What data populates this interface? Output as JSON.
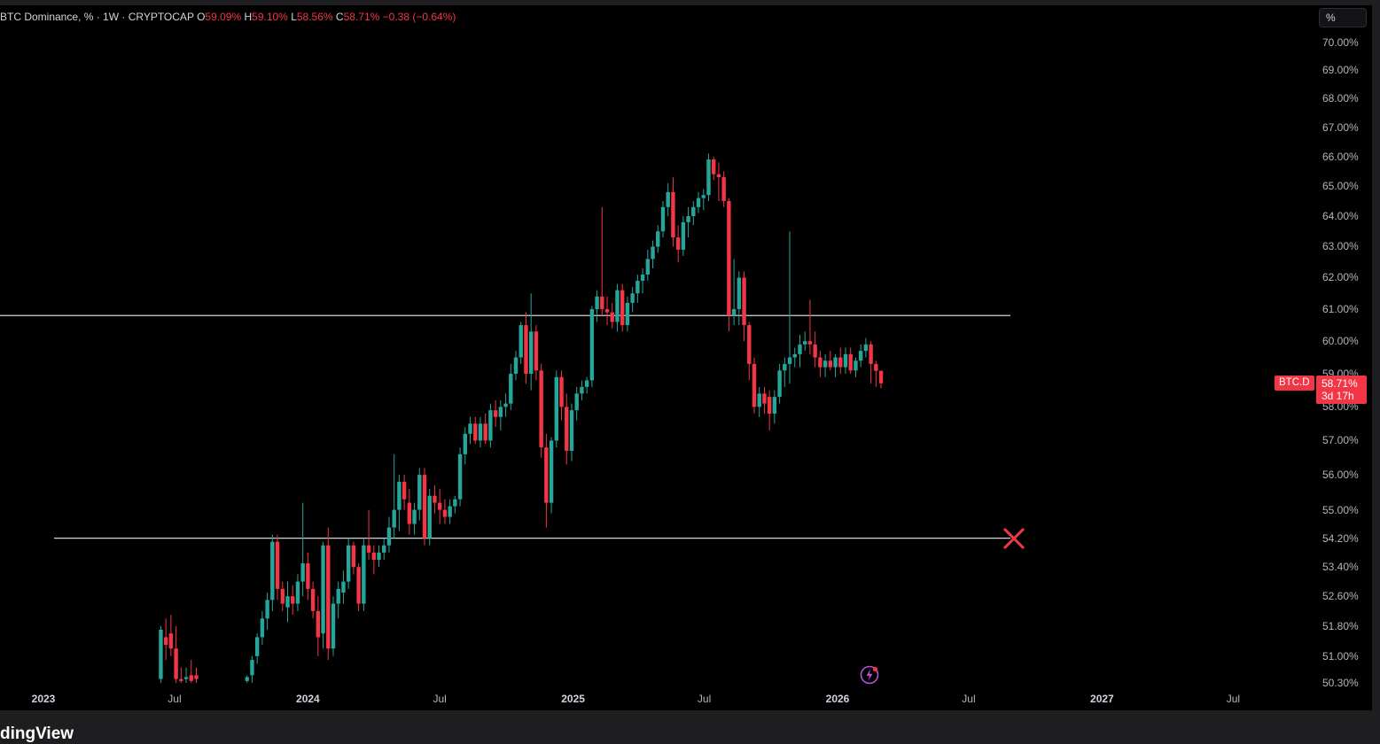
{
  "header": {
    "title": "BTC Dominance, % · 1W · CRYPTOCAP",
    "open_key": "O",
    "open": "59.09%",
    "high_key": "H",
    "high": "59.10%",
    "low_key": "L",
    "low": "58.56%",
    "close_key": "C",
    "close": "58.71%",
    "change": "−0.38 (−0.64%)"
  },
  "scale_button": "%",
  "last_price": {
    "symbol": "BTC.D",
    "value": "58.71%",
    "countdown": "3d 17h",
    "color": "#f23645"
  },
  "footer": {
    "logo_text": "dingView"
  },
  "icons": {
    "target_marker": "x-mark-icon",
    "indicator": "lightning-icon"
  },
  "colors": {
    "up": "#26a69a",
    "down": "#f23645",
    "background": "#000000",
    "level_line": "#d1d4dc",
    "marker": "#f23645",
    "indicator": "#b452d8"
  },
  "chart_data": {
    "type": "candlestick",
    "title": "BTC Dominance, % · 1W · CRYPTOCAP",
    "xlabel": "",
    "ylabel": "",
    "ylim": [
      50.3,
      70.0
    ],
    "y_scale": "log",
    "y_tick_labels": [
      "70.00%",
      "69.00%",
      "68.00%",
      "67.00%",
      "66.00%",
      "65.00%",
      "64.00%",
      "63.00%",
      "62.00%",
      "61.00%",
      "60.00%",
      "59.00%",
      "58.00%",
      "57.00%",
      "56.00%",
      "55.00%",
      "54.20%",
      "53.40%",
      "52.60%",
      "51.80%",
      "51.00%",
      "50.30%"
    ],
    "y_tick_values": [
      70,
      69,
      68,
      67,
      66,
      65,
      64,
      63,
      62,
      61,
      60,
      59,
      58,
      57,
      56,
      55,
      54.2,
      53.4,
      52.6,
      51.8,
      51,
      50.3
    ],
    "x_tick_labels": [
      "2023",
      "Jul",
      "2024",
      "Jul",
      "2025",
      "Jul",
      "2026",
      "Jul",
      "2027",
      "Jul"
    ],
    "x_tick_dates": [
      "2023-01-01",
      "2023-07-01",
      "2024-01-01",
      "2024-07-01",
      "2025-01-01",
      "2025-07-01",
      "2026-01-01",
      "2026-07-01",
      "2027-01-01",
      "2027-07-01"
    ],
    "horizontal_levels": [
      60.8,
      54.2
    ],
    "marker": {
      "type": "x",
      "value": 54.2,
      "date": "2026-09-01"
    },
    "candles": [
      {
        "date": "2023-06-12",
        "o": 50.4,
        "h": 51.8,
        "l": 50.3,
        "c": 51.7
      },
      {
        "date": "2023-06-19",
        "o": 51.5,
        "h": 52.0,
        "l": 50.9,
        "c": 51.3
      },
      {
        "date": "2023-06-26",
        "o": 51.6,
        "h": 52.1,
        "l": 51.0,
        "c": 51.2
      },
      {
        "date": "2023-07-03",
        "o": 51.2,
        "h": 51.8,
        "l": 50.3,
        "c": 50.4
      },
      {
        "date": "2023-07-10",
        "o": 50.4,
        "h": 50.7,
        "l": 50.3,
        "c": 50.35
      },
      {
        "date": "2023-07-17",
        "o": 50.4,
        "h": 50.7,
        "l": 50.3,
        "c": 50.45
      },
      {
        "date": "2023-07-24",
        "o": 50.5,
        "h": 50.9,
        "l": 50.3,
        "c": 50.35
      },
      {
        "date": "2023-07-31",
        "o": 50.5,
        "h": 50.7,
        "l": 50.3,
        "c": 50.4
      },
      {
        "date": "2023-10-09",
        "o": 50.35,
        "h": 50.5,
        "l": 50.3,
        "c": 50.45
      },
      {
        "date": "2023-10-16",
        "o": 50.5,
        "h": 51.0,
        "l": 50.3,
        "c": 50.9
      },
      {
        "date": "2023-10-23",
        "o": 51.0,
        "h": 51.6,
        "l": 50.8,
        "c": 51.5
      },
      {
        "date": "2023-10-30",
        "o": 51.5,
        "h": 52.2,
        "l": 51.3,
        "c": 52.0
      },
      {
        "date": "2023-11-06",
        "o": 52.0,
        "h": 52.7,
        "l": 51.7,
        "c": 52.5
      },
      {
        "date": "2023-11-13",
        "o": 52.5,
        "h": 54.3,
        "l": 52.2,
        "c": 54.1
      },
      {
        "date": "2023-11-20",
        "o": 54.1,
        "h": 54.3,
        "l": 52.5,
        "c": 52.8
      },
      {
        "date": "2023-11-27",
        "o": 52.8,
        "h": 53.0,
        "l": 52.2,
        "c": 52.4
      },
      {
        "date": "2023-12-04",
        "o": 52.3,
        "h": 53.0,
        "l": 51.9,
        "c": 52.6
      },
      {
        "date": "2023-12-11",
        "o": 52.6,
        "h": 52.9,
        "l": 52.1,
        "c": 52.4
      },
      {
        "date": "2023-12-18",
        "o": 52.4,
        "h": 53.2,
        "l": 52.2,
        "c": 53.0
      },
      {
        "date": "2023-12-25",
        "o": 53.0,
        "h": 55.2,
        "l": 52.6,
        "c": 53.5
      },
      {
        "date": "2024-01-01",
        "o": 53.5,
        "h": 53.8,
        "l": 52.5,
        "c": 52.8
      },
      {
        "date": "2024-01-08",
        "o": 52.8,
        "h": 53.0,
        "l": 52.0,
        "c": 52.2
      },
      {
        "date": "2024-01-15",
        "o": 52.2,
        "h": 52.6,
        "l": 51.0,
        "c": 51.5
      },
      {
        "date": "2024-01-22",
        "o": 51.6,
        "h": 54.1,
        "l": 51.2,
        "c": 54.0
      },
      {
        "date": "2024-01-29",
        "o": 54.0,
        "h": 54.5,
        "l": 50.9,
        "c": 51.2
      },
      {
        "date": "2024-02-05",
        "o": 51.2,
        "h": 52.6,
        "l": 51.0,
        "c": 52.4
      },
      {
        "date": "2024-02-12",
        "o": 52.4,
        "h": 53.0,
        "l": 52.0,
        "c": 52.8
      },
      {
        "date": "2024-02-19",
        "o": 52.7,
        "h": 53.3,
        "l": 52.4,
        "c": 53.0
      },
      {
        "date": "2024-02-26",
        "o": 53.0,
        "h": 54.2,
        "l": 52.8,
        "c": 54.0
      },
      {
        "date": "2024-03-04",
        "o": 54.0,
        "h": 54.1,
        "l": 53.2,
        "c": 53.4
      },
      {
        "date": "2024-03-11",
        "o": 53.4,
        "h": 53.5,
        "l": 52.2,
        "c": 52.4
      },
      {
        "date": "2024-03-18",
        "o": 52.4,
        "h": 54.2,
        "l": 52.2,
        "c": 54.0
      },
      {
        "date": "2024-03-25",
        "o": 54.0,
        "h": 55.0,
        "l": 53.6,
        "c": 53.8
      },
      {
        "date": "2024-04-01",
        "o": 53.8,
        "h": 54.0,
        "l": 53.2,
        "c": 53.6
      },
      {
        "date": "2024-04-08",
        "o": 53.6,
        "h": 54.0,
        "l": 53.4,
        "c": 53.8
      },
      {
        "date": "2024-04-15",
        "o": 53.8,
        "h": 54.2,
        "l": 53.6,
        "c": 54.0
      },
      {
        "date": "2024-04-22",
        "o": 54.0,
        "h": 54.8,
        "l": 53.8,
        "c": 54.5
      },
      {
        "date": "2024-04-29",
        "o": 54.5,
        "h": 56.6,
        "l": 54.2,
        "c": 55.0
      },
      {
        "date": "2024-05-06",
        "o": 55.0,
        "h": 56.0,
        "l": 54.4,
        "c": 55.8
      },
      {
        "date": "2024-05-13",
        "o": 55.8,
        "h": 56.0,
        "l": 55.0,
        "c": 55.3
      },
      {
        "date": "2024-05-20",
        "o": 55.2,
        "h": 55.6,
        "l": 54.3,
        "c": 54.6
      },
      {
        "date": "2024-05-27",
        "o": 54.6,
        "h": 55.2,
        "l": 54.3,
        "c": 55.0
      },
      {
        "date": "2024-06-03",
        "o": 55.0,
        "h": 56.2,
        "l": 54.7,
        "c": 56.0
      },
      {
        "date": "2024-06-10",
        "o": 56.0,
        "h": 56.2,
        "l": 54.0,
        "c": 54.2
      },
      {
        "date": "2024-06-17",
        "o": 54.2,
        "h": 55.6,
        "l": 54.0,
        "c": 55.4
      },
      {
        "date": "2024-06-24",
        "o": 55.4,
        "h": 55.7,
        "l": 54.9,
        "c": 55.2
      },
      {
        "date": "2024-07-01",
        "o": 55.2,
        "h": 55.6,
        "l": 54.6,
        "c": 55.0
      },
      {
        "date": "2024-07-08",
        "o": 55.0,
        "h": 55.3,
        "l": 54.6,
        "c": 54.8
      },
      {
        "date": "2024-07-15",
        "o": 54.8,
        "h": 55.3,
        "l": 54.6,
        "c": 55.1
      },
      {
        "date": "2024-07-22",
        "o": 55.1,
        "h": 55.4,
        "l": 54.9,
        "c": 55.3
      },
      {
        "date": "2024-07-29",
        "o": 55.3,
        "h": 56.8,
        "l": 55.1,
        "c": 56.6
      },
      {
        "date": "2024-08-05",
        "o": 56.6,
        "h": 57.4,
        "l": 56.3,
        "c": 57.2
      },
      {
        "date": "2024-08-12",
        "o": 57.2,
        "h": 57.7,
        "l": 56.9,
        "c": 57.5
      },
      {
        "date": "2024-08-19",
        "o": 57.5,
        "h": 57.7,
        "l": 56.9,
        "c": 57.0
      },
      {
        "date": "2024-08-26",
        "o": 57.0,
        "h": 57.7,
        "l": 56.8,
        "c": 57.5
      },
      {
        "date": "2024-09-02",
        "o": 57.5,
        "h": 57.8,
        "l": 56.9,
        "c": 57.0
      },
      {
        "date": "2024-09-09",
        "o": 57.0,
        "h": 58.1,
        "l": 56.8,
        "c": 57.9
      },
      {
        "date": "2024-09-16",
        "o": 57.9,
        "h": 58.2,
        "l": 57.4,
        "c": 57.7
      },
      {
        "date": "2024-09-23",
        "o": 57.7,
        "h": 58.2,
        "l": 57.3,
        "c": 58.0
      },
      {
        "date": "2024-09-30",
        "o": 58.0,
        "h": 58.4,
        "l": 57.7,
        "c": 58.1
      },
      {
        "date": "2024-10-07",
        "o": 58.1,
        "h": 59.3,
        "l": 57.9,
        "c": 59.0
      },
      {
        "date": "2024-10-14",
        "o": 59.0,
        "h": 59.7,
        "l": 58.8,
        "c": 59.5
      },
      {
        "date": "2024-10-21",
        "o": 59.5,
        "h": 60.6,
        "l": 59.3,
        "c": 60.5
      },
      {
        "date": "2024-10-28",
        "o": 60.5,
        "h": 60.9,
        "l": 58.7,
        "c": 59.0
      },
      {
        "date": "2024-11-04",
        "o": 59.0,
        "h": 61.5,
        "l": 58.5,
        "c": 60.3
      },
      {
        "date": "2024-11-11",
        "o": 60.3,
        "h": 60.5,
        "l": 58.8,
        "c": 59.1
      },
      {
        "date": "2024-11-18",
        "o": 59.1,
        "h": 59.3,
        "l": 56.5,
        "c": 56.8
      },
      {
        "date": "2024-11-25",
        "o": 56.8,
        "h": 57.2,
        "l": 54.5,
        "c": 55.2
      },
      {
        "date": "2024-12-02",
        "o": 55.2,
        "h": 57.1,
        "l": 54.9,
        "c": 57.0
      },
      {
        "date": "2024-12-09",
        "o": 57.0,
        "h": 59.1,
        "l": 56.8,
        "c": 58.9
      },
      {
        "date": "2024-12-16",
        "o": 58.9,
        "h": 59.1,
        "l": 57.6,
        "c": 58.0
      },
      {
        "date": "2024-12-23",
        "o": 58.0,
        "h": 58.4,
        "l": 56.3,
        "c": 56.7
      },
      {
        "date": "2024-12-30",
        "o": 56.7,
        "h": 58.1,
        "l": 56.4,
        "c": 57.9
      },
      {
        "date": "2025-01-06",
        "o": 57.9,
        "h": 58.6,
        "l": 57.6,
        "c": 58.4
      },
      {
        "date": "2025-01-13",
        "o": 58.4,
        "h": 58.8,
        "l": 58.2,
        "c": 58.6
      },
      {
        "date": "2025-01-20",
        "o": 58.6,
        "h": 58.9,
        "l": 58.4,
        "c": 58.8
      },
      {
        "date": "2025-01-27",
        "o": 58.8,
        "h": 61.1,
        "l": 58.6,
        "c": 61.0
      },
      {
        "date": "2025-02-03",
        "o": 61.0,
        "h": 61.6,
        "l": 60.6,
        "c": 61.4
      },
      {
        "date": "2025-02-10",
        "o": 61.4,
        "h": 64.3,
        "l": 60.8,
        "c": 61.0
      },
      {
        "date": "2025-02-17",
        "o": 61.0,
        "h": 61.4,
        "l": 60.5,
        "c": 60.9
      },
      {
        "date": "2025-02-24",
        "o": 60.9,
        "h": 61.2,
        "l": 60.4,
        "c": 60.6
      },
      {
        "date": "2025-03-03",
        "o": 60.6,
        "h": 61.8,
        "l": 60.3,
        "c": 61.6
      },
      {
        "date": "2025-03-10",
        "o": 61.6,
        "h": 61.8,
        "l": 60.3,
        "c": 60.5
      },
      {
        "date": "2025-03-17",
        "o": 60.5,
        "h": 61.4,
        "l": 60.3,
        "c": 61.2
      },
      {
        "date": "2025-03-24",
        "o": 61.2,
        "h": 61.7,
        "l": 60.9,
        "c": 61.5
      },
      {
        "date": "2025-03-31",
        "o": 61.5,
        "h": 62.1,
        "l": 61.2,
        "c": 61.9
      },
      {
        "date": "2025-04-07",
        "o": 61.9,
        "h": 62.3,
        "l": 61.5,
        "c": 62.1
      },
      {
        "date": "2025-04-14",
        "o": 62.1,
        "h": 62.9,
        "l": 61.9,
        "c": 62.6
      },
      {
        "date": "2025-04-21",
        "o": 62.6,
        "h": 63.2,
        "l": 62.3,
        "c": 63.0
      },
      {
        "date": "2025-04-28",
        "o": 63.0,
        "h": 63.7,
        "l": 62.8,
        "c": 63.5
      },
      {
        "date": "2025-05-05",
        "o": 63.5,
        "h": 64.5,
        "l": 63.3,
        "c": 64.3
      },
      {
        "date": "2025-05-12",
        "o": 64.3,
        "h": 65.1,
        "l": 64.0,
        "c": 64.8
      },
      {
        "date": "2025-05-19",
        "o": 64.8,
        "h": 65.3,
        "l": 63.0,
        "c": 63.3
      },
      {
        "date": "2025-05-26",
        "o": 63.3,
        "h": 63.7,
        "l": 62.5,
        "c": 62.9
      },
      {
        "date": "2025-06-02",
        "o": 62.9,
        "h": 64.0,
        "l": 62.7,
        "c": 63.8
      },
      {
        "date": "2025-06-09",
        "o": 63.8,
        "h": 64.3,
        "l": 63.3,
        "c": 64.0
      },
      {
        "date": "2025-06-16",
        "o": 64.0,
        "h": 64.5,
        "l": 63.7,
        "c": 64.3
      },
      {
        "date": "2025-06-23",
        "o": 64.3,
        "h": 64.8,
        "l": 64.1,
        "c": 64.6
      },
      {
        "date": "2025-06-30",
        "o": 64.6,
        "h": 64.9,
        "l": 64.2,
        "c": 64.7
      },
      {
        "date": "2025-07-07",
        "o": 64.7,
        "h": 66.1,
        "l": 64.5,
        "c": 65.9
      },
      {
        "date": "2025-07-14",
        "o": 65.9,
        "h": 66.0,
        "l": 65.2,
        "c": 65.4
      },
      {
        "date": "2025-07-21",
        "o": 65.4,
        "h": 65.8,
        "l": 64.5,
        "c": 65.3
      },
      {
        "date": "2025-07-28",
        "o": 65.3,
        "h": 65.5,
        "l": 64.3,
        "c": 64.5
      },
      {
        "date": "2025-08-04",
        "o": 64.5,
        "h": 64.6,
        "l": 60.3,
        "c": 60.8
      },
      {
        "date": "2025-08-11",
        "o": 60.8,
        "h": 62.6,
        "l": 60.5,
        "c": 61.0
      },
      {
        "date": "2025-08-18",
        "o": 61.0,
        "h": 62.2,
        "l": 60.5,
        "c": 62.0
      },
      {
        "date": "2025-08-25",
        "o": 62.0,
        "h": 62.2,
        "l": 60.0,
        "c": 60.5
      },
      {
        "date": "2025-09-01",
        "o": 60.5,
        "h": 60.6,
        "l": 58.8,
        "c": 59.3
      },
      {
        "date": "2025-09-08",
        "o": 59.3,
        "h": 59.5,
        "l": 57.8,
        "c": 58.0
      },
      {
        "date": "2025-09-15",
        "o": 58.0,
        "h": 58.6,
        "l": 57.7,
        "c": 58.4
      },
      {
        "date": "2025-09-22",
        "o": 58.4,
        "h": 58.6,
        "l": 57.8,
        "c": 58.1
      },
      {
        "date": "2025-09-29",
        "o": 58.3,
        "h": 58.5,
        "l": 57.3,
        "c": 57.8
      },
      {
        "date": "2025-10-06",
        "o": 57.8,
        "h": 58.5,
        "l": 57.5,
        "c": 58.3
      },
      {
        "date": "2025-10-13",
        "o": 58.3,
        "h": 59.3,
        "l": 58.1,
        "c": 59.1
      },
      {
        "date": "2025-10-20",
        "o": 59.1,
        "h": 59.5,
        "l": 58.6,
        "c": 59.3
      },
      {
        "date": "2025-10-27",
        "o": 59.3,
        "h": 63.5,
        "l": 58.7,
        "c": 59.5
      },
      {
        "date": "2025-11-03",
        "o": 59.5,
        "h": 59.8,
        "l": 59.2,
        "c": 59.6
      },
      {
        "date": "2025-11-10",
        "o": 59.6,
        "h": 60.2,
        "l": 59.2,
        "c": 59.9
      },
      {
        "date": "2025-11-17",
        "o": 59.9,
        "h": 60.3,
        "l": 59.7,
        "c": 60.0
      },
      {
        "date": "2025-11-24",
        "o": 60.0,
        "h": 61.3,
        "l": 59.6,
        "c": 59.9
      },
      {
        "date": "2025-12-01",
        "o": 59.9,
        "h": 60.3,
        "l": 59.2,
        "c": 59.5
      },
      {
        "date": "2025-12-08",
        "o": 59.5,
        "h": 59.7,
        "l": 58.9,
        "c": 59.2
      },
      {
        "date": "2025-12-15",
        "o": 59.2,
        "h": 59.6,
        "l": 58.9,
        "c": 59.4
      },
      {
        "date": "2025-12-22",
        "o": 59.4,
        "h": 59.7,
        "l": 59.1,
        "c": 59.2
      },
      {
        "date": "2025-12-29",
        "o": 59.2,
        "h": 59.6,
        "l": 58.9,
        "c": 59.5
      },
      {
        "date": "2026-01-05",
        "o": 59.5,
        "h": 59.8,
        "l": 59.0,
        "c": 59.2
      },
      {
        "date": "2026-01-12",
        "o": 59.2,
        "h": 59.8,
        "l": 59.0,
        "c": 59.6
      },
      {
        "date": "2026-01-19",
        "o": 59.6,
        "h": 59.8,
        "l": 59.0,
        "c": 59.1
      },
      {
        "date": "2026-01-26",
        "o": 59.1,
        "h": 59.5,
        "l": 58.9,
        "c": 59.4
      },
      {
        "date": "2026-02-02",
        "o": 59.4,
        "h": 59.9,
        "l": 59.2,
        "c": 59.7
      },
      {
        "date": "2026-02-09",
        "o": 59.7,
        "h": 60.1,
        "l": 59.5,
        "c": 59.9
      },
      {
        "date": "2026-02-16",
        "o": 59.9,
        "h": 60.0,
        "l": 58.7,
        "c": 59.3
      },
      {
        "date": "2026-02-23",
        "o": 59.3,
        "h": 59.4,
        "l": 58.6,
        "c": 59.09
      },
      {
        "date": "2026-03-02",
        "o": 59.09,
        "h": 59.1,
        "l": 58.56,
        "c": 58.71
      }
    ]
  }
}
